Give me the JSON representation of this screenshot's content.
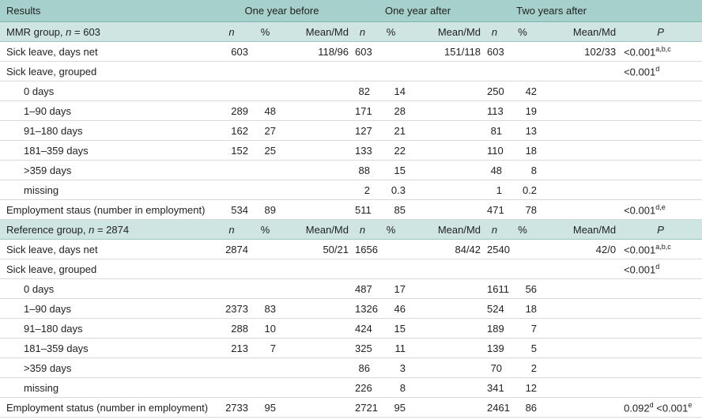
{
  "header": {
    "results": "Results",
    "groups": [
      "One year before",
      "One year after",
      "Two years after"
    ]
  },
  "sections": [
    {
      "title": {
        "name": "MMR group,",
        "var": "n",
        "eq": "= 603"
      },
      "columns": [
        "n",
        "%",
        "Mean/Md",
        "n",
        "%",
        "Mean/Md",
        "n",
        "%",
        "Mean/Md",
        "P"
      ],
      "rows": [
        {
          "label": "Sick leave, days net",
          "cells": [
            603,
            null,
            "118/96",
            603,
            null,
            "151/118",
            603,
            null,
            "102/33"
          ],
          "p": [
            {
              "text": "<0.001",
              "sup": "a,b,c"
            }
          ]
        },
        {
          "label": "Sick leave, grouped",
          "cells": [
            null,
            null,
            null,
            null,
            null,
            null,
            null,
            null,
            null
          ],
          "p": [
            {
              "text": "<0.001",
              "sup": "d"
            }
          ]
        },
        {
          "label": "0 days",
          "indent": true,
          "cells": [
            null,
            null,
            null,
            82,
            14,
            null,
            250,
            42,
            null
          ]
        },
        {
          "label": "1–90 days",
          "indent": true,
          "cells": [
            289,
            48,
            null,
            171,
            28,
            null,
            113,
            19,
            null
          ]
        },
        {
          "label": "91–180 days",
          "indent": true,
          "cells": [
            162,
            27,
            null,
            127,
            21,
            null,
            81,
            13,
            null
          ]
        },
        {
          "label": "181–359 days",
          "indent": true,
          "cells": [
            152,
            25,
            null,
            133,
            22,
            null,
            110,
            18,
            null
          ]
        },
        {
          "label": ">359 days",
          "indent": true,
          "cells": [
            null,
            null,
            null,
            88,
            15,
            null,
            48,
            8,
            null
          ]
        },
        {
          "label": "missing",
          "indent": true,
          "cells": [
            null,
            null,
            null,
            2,
            0.3,
            null,
            1,
            0.2,
            null
          ]
        },
        {
          "label": "Employment staus (number in employment)",
          "cells": [
            534,
            89,
            null,
            511,
            85,
            null,
            471,
            78,
            null
          ],
          "p": [
            {
              "text": "<0.001",
              "sup": "d,e"
            }
          ]
        }
      ]
    },
    {
      "title": {
        "name": "Reference group,",
        "var": "n",
        "eq": "= 2874"
      },
      "columns": [
        "n",
        "%",
        "Mean/Md",
        "n",
        "%",
        "Mean/Md",
        "n",
        "%",
        "Mean/Md",
        "P"
      ],
      "rows": [
        {
          "label": "Sick leave, days net",
          "cells": [
            2874,
            null,
            "50/21",
            1656,
            null,
            "84/42",
            2540,
            null,
            "42/0"
          ],
          "p": [
            {
              "text": "<0.001",
              "sup": "a,b,c"
            }
          ]
        },
        {
          "label": "Sick leave, grouped",
          "cells": [
            null,
            null,
            null,
            null,
            null,
            null,
            null,
            null,
            null
          ],
          "p": [
            {
              "text": "<0.001",
              "sup": "d"
            }
          ]
        },
        {
          "label": "0 days",
          "indent": true,
          "cells": [
            null,
            null,
            null,
            487,
            17,
            null,
            1611,
            56,
            null
          ]
        },
        {
          "label": "1–90 days",
          "indent": true,
          "cells": [
            2373,
            83,
            null,
            1326,
            46,
            null,
            524,
            18,
            null
          ]
        },
        {
          "label": "91–180 days",
          "indent": true,
          "cells": [
            288,
            10,
            null,
            424,
            15,
            null,
            189,
            7,
            null
          ]
        },
        {
          "label": "181–359 days",
          "indent": true,
          "cells": [
            213,
            7,
            null,
            325,
            11,
            null,
            139,
            5,
            null
          ]
        },
        {
          "label": ">359 days",
          "indent": true,
          "cells": [
            null,
            null,
            null,
            86,
            3,
            null,
            70,
            2,
            null
          ]
        },
        {
          "label": "missing",
          "indent": true,
          "cells": [
            null,
            null,
            null,
            226,
            8,
            null,
            341,
            12,
            null
          ]
        },
        {
          "label": "Employment status (number in employment)",
          "cells": [
            2733,
            95,
            null,
            2721,
            95,
            null,
            2461,
            86,
            null
          ],
          "p": [
            {
              "text": "0.092",
              "sup": "d"
            },
            {
              "text": "<0.001",
              "sup": "e"
            }
          ]
        }
      ]
    }
  ]
}
